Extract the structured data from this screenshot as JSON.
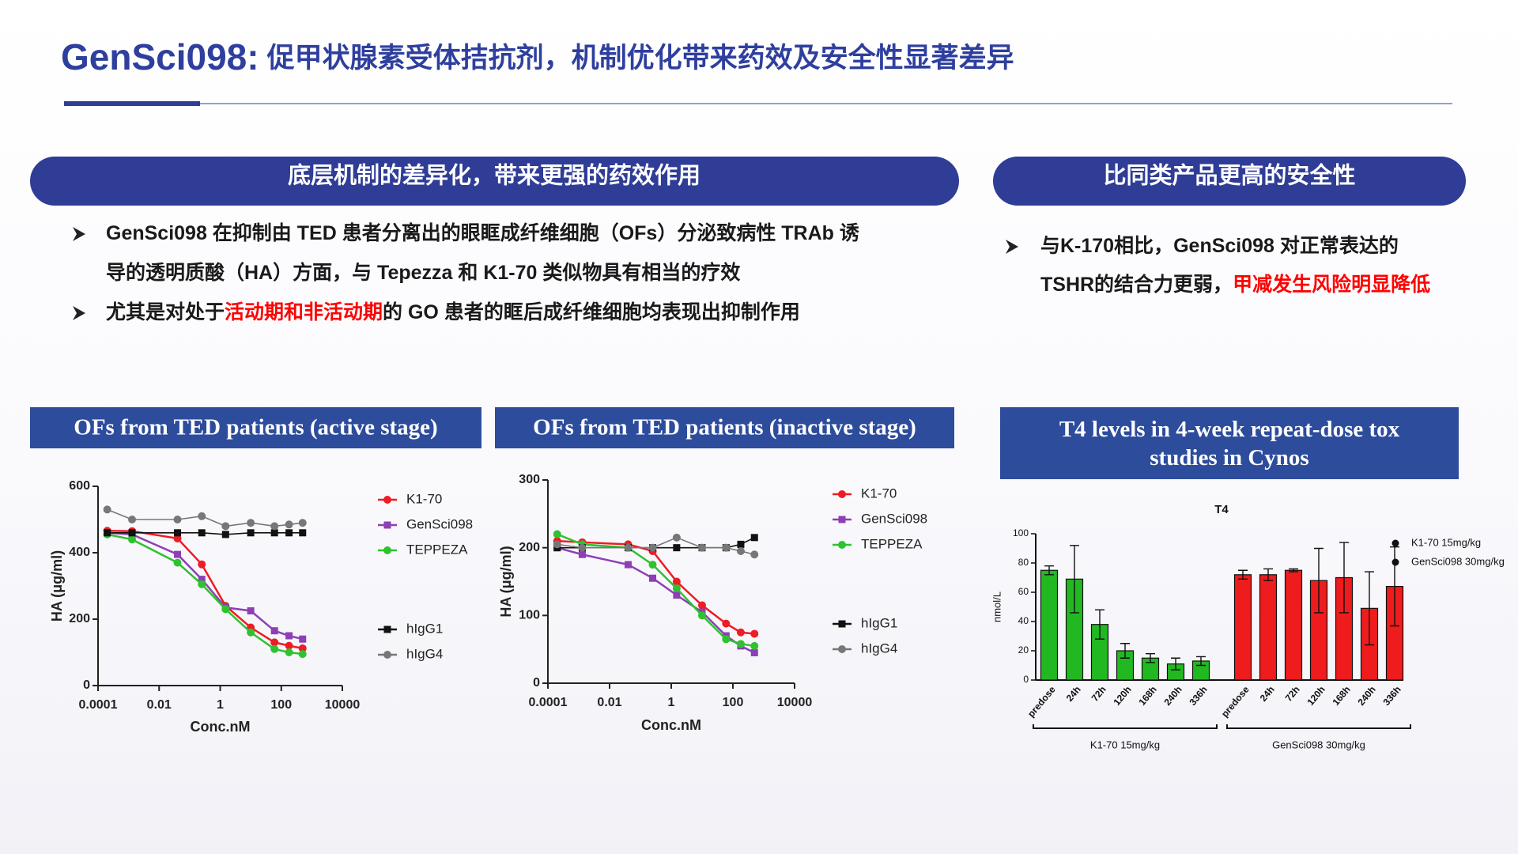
{
  "header": {
    "brand": "GenSci098:",
    "title": "促甲状腺素受体拮抗剂，机制优化带来药效及安全性显著差异"
  },
  "left_panel": {
    "heading": "底层机制的差异化，带来更强的药效作用",
    "bullets": [
      [
        [
          {
            "text": "GenSci098 在抑制由 TED 患者分离出的眼眶成纤维细胞（OFs）分泌致病性 TRAb 诱"
          }
        ],
        [
          {
            "text": "导的透明质酸（HA）方面，与 Tepezza 和 K1-70 类似物具有相当的疗效"
          }
        ]
      ],
      [
        [
          {
            "text": "尤其是对处于"
          },
          {
            "text": "活动期和非活动期",
            "color": "#ff0000"
          },
          {
            "text": "的 GO 患者的眶后成纤维细胞均表现出抑制作用"
          }
        ]
      ]
    ]
  },
  "right_panel": {
    "heading": "比同类产品更高的安全性",
    "bullets": [
      [
        [
          {
            "text": "与K-170相比，GenSci098 对正常表达的"
          }
        ],
        [
          {
            "text": "TSHR的结合力更弱，"
          },
          {
            "text": "甲减发生风险明显降低",
            "color": "#ff0000"
          }
        ]
      ]
    ]
  },
  "chart_data": [
    {
      "type": "line",
      "title": "OFs from TED patients (active stage)",
      "x_label": "Conc.nM",
      "y_label": "HA (μg/ml)",
      "x_scale": "log",
      "x": [
        0.0002,
        0.0013,
        0.04,
        0.25,
        1.5,
        10,
        60,
        180,
        500
      ],
      "xlim": [
        0.0001,
        10000
      ],
      "xticks": [
        0.0001,
        0.01,
        1,
        100,
        10000
      ],
      "ylim": [
        0,
        600
      ],
      "yticks": [
        0,
        200,
        400,
        600
      ],
      "series": [
        {
          "name": "K1-70",
          "color": "#ee1c25",
          "marker": "circle",
          "values": [
            466,
            465,
            443,
            365,
            240,
            175,
            130,
            120,
            112
          ]
        },
        {
          "name": "GenSci098",
          "color": "#8e3fb5",
          "marker": "square",
          "values": [
            460,
            455,
            395,
            320,
            235,
            225,
            165,
            150,
            140
          ]
        },
        {
          "name": "TEPPEZA",
          "color": "#2fc22f",
          "marker": "circle",
          "values": [
            455,
            440,
            370,
            305,
            230,
            160,
            110,
            100,
            95
          ]
        },
        {
          "name": "hIgG1",
          "color": "#111111",
          "marker": "square",
          "values": [
            460,
            460,
            460,
            460,
            455,
            460,
            460,
            460,
            460
          ]
        },
        {
          "name": "hIgG4",
          "color": "#777777",
          "marker": "circle",
          "values": [
            530,
            500,
            500,
            510,
            480,
            490,
            480,
            485,
            490
          ]
        }
      ]
    },
    {
      "type": "line",
      "title": "OFs from TED patients (inactive stage)",
      "x_label": "Conc.nM",
      "y_label": "HA (μg/ml)",
      "x_scale": "log",
      "x": [
        0.0002,
        0.0013,
        0.04,
        0.25,
        1.5,
        10,
        60,
        180,
        500
      ],
      "xlim": [
        0.0001,
        10000
      ],
      "xticks": [
        0.0001,
        0.01,
        1,
        100,
        10000
      ],
      "ylim": [
        0,
        300
      ],
      "yticks": [
        0,
        100,
        200,
        300
      ],
      "series": [
        {
          "name": "K1-70",
          "color": "#ee1c25",
          "marker": "circle",
          "values": [
            210,
            208,
            205,
            195,
            150,
            115,
            88,
            75,
            73
          ]
        },
        {
          "name": "GenSci098",
          "color": "#8e3fb5",
          "marker": "square",
          "values": [
            200,
            190,
            175,
            155,
            130,
            105,
            70,
            55,
            45
          ]
        },
        {
          "name": "TEPPEZA",
          "color": "#2fc22f",
          "marker": "circle",
          "values": [
            220,
            205,
            200,
            175,
            140,
            100,
            65,
            58,
            55
          ]
        },
        {
          "name": "hIgG1",
          "color": "#111111",
          "marker": "square",
          "values": [
            200,
            200,
            200,
            200,
            200,
            200,
            200,
            205,
            215
          ]
        },
        {
          "name": "hIgG4",
          "color": "#777777",
          "marker": "circle",
          "values": [
            205,
            200,
            200,
            200,
            215,
            200,
            200,
            195,
            190
          ]
        }
      ]
    },
    {
      "type": "bar",
      "title": "T4 levels in 4-week repeat-dose tox studies in Cynos",
      "plot_title": "T4",
      "y_label": "nmol/L",
      "categories": [
        "predose",
        "24h",
        "72h",
        "120h",
        "168h",
        "240h",
        "336h"
      ],
      "ylim": [
        0,
        100
      ],
      "yticks": [
        0,
        20,
        40,
        60,
        80,
        100
      ],
      "series": [
        {
          "name": "K1-70 15mg/kg",
          "color": "#22b822",
          "values": [
            75,
            69,
            38,
            20,
            15,
            11,
            13
          ],
          "errors": [
            3,
            23,
            10,
            5,
            3,
            4,
            3
          ]
        },
        {
          "name": "GenSci098 30mg/kg",
          "color": "#ee1c1c",
          "values": [
            72,
            72,
            75,
            68,
            70,
            49,
            64
          ],
          "errors": [
            3,
            4,
            1,
            22,
            24,
            25,
            27
          ]
        }
      ]
    }
  ]
}
